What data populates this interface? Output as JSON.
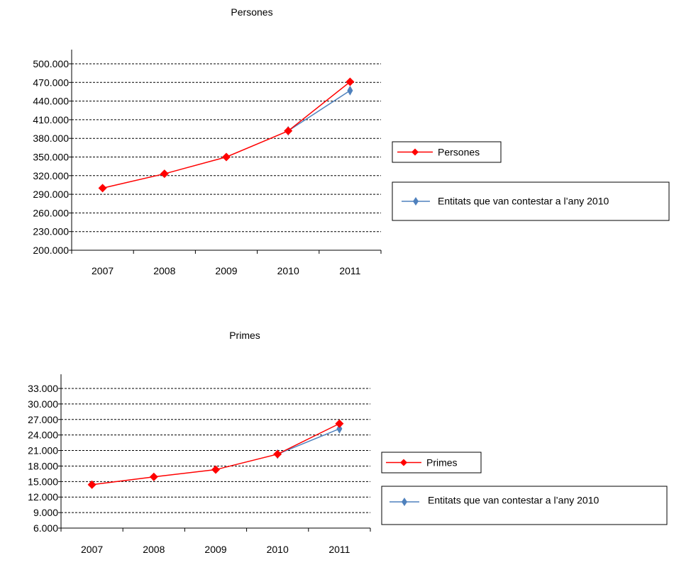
{
  "colors": {
    "series_main": "#ff0000",
    "series_2010": "#4f81bd",
    "grid": "#000000"
  },
  "chart_data": [
    {
      "type": "line",
      "title": "Persones",
      "categories": [
        "2007",
        "2008",
        "2009",
        "2010",
        "2011"
      ],
      "ylim": [
        200000,
        500000
      ],
      "yticks": [
        200000,
        230000,
        260000,
        290000,
        320000,
        350000,
        380000,
        410000,
        440000,
        470000,
        500000
      ],
      "ytick_labels": [
        "200.000",
        "230.000",
        "260.000",
        "290.000",
        "320.000",
        "350.000",
        "380.000",
        "410.000",
        "440.000",
        "470.000",
        "500.000"
      ],
      "grid": true,
      "legend_position": "right",
      "series": [
        {
          "name": "Persones",
          "color": "#ff0000",
          "marker": "diamond",
          "values": [
            300000,
            323000,
            350000,
            392000,
            471000
          ]
        },
        {
          "name": "Entitats que van contestar a l’any 2010",
          "color": "#4f81bd",
          "marker": "diamond",
          "values": [
            null,
            null,
            null,
            392000,
            457000
          ]
        }
      ]
    },
    {
      "type": "line",
      "title": "Primes",
      "categories": [
        "2007",
        "2008",
        "2009",
        "2010",
        "2011"
      ],
      "ylim": [
        6000,
        33000
      ],
      "yticks": [
        6000,
        9000,
        12000,
        15000,
        18000,
        21000,
        24000,
        27000,
        30000,
        33000
      ],
      "ytick_labels": [
        "6.000",
        "9.000",
        "12.000",
        "15.000",
        "18.000",
        "21.000",
        "24.000",
        "27.000",
        "30.000",
        "33.000"
      ],
      "grid": true,
      "legend_position": "right",
      "series": [
        {
          "name": "Primes",
          "color": "#ff0000",
          "marker": "diamond",
          "values": [
            14400,
            15900,
            17300,
            20300,
            26200
          ]
        },
        {
          "name": "Entitats que van contestar a l’any 2010",
          "color": "#4f81bd",
          "marker": "diamond",
          "values": [
            null,
            null,
            null,
            20300,
            25200
          ]
        }
      ]
    }
  ]
}
